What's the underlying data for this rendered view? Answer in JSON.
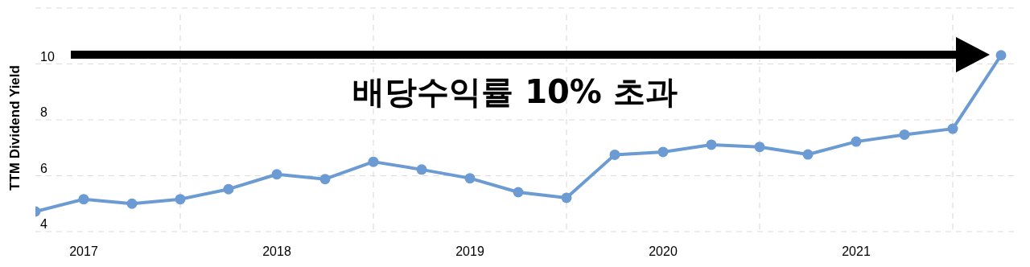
{
  "chart_data": {
    "type": "line",
    "ylabel": "TTM Dividend Yield",
    "x": [
      "2016-10",
      "2017-01",
      "2017-04",
      "2017-07",
      "2017-10",
      "2018-01",
      "2018-04",
      "2018-07",
      "2018-10",
      "2019-01",
      "2019-04",
      "2019-07",
      "2019-10",
      "2020-01",
      "2020-04",
      "2020-07",
      "2020-10",
      "2021-01",
      "2021-04",
      "2021-07",
      "2021-10"
    ],
    "series": [
      {
        "color": "#6b9bd2",
        "values": [
          4.72,
          5.16,
          5.0,
          5.16,
          5.52,
          6.05,
          5.88,
          6.5,
          6.22,
          5.91,
          5.41,
          5.21,
          6.75,
          6.85,
          7.11,
          7.03,
          6.76,
          7.22,
          7.47,
          7.68,
          10.31
        ]
      }
    ],
    "xlim": [
      "2016-10",
      "2021-11"
    ],
    "xticks": [
      {
        "value": "2017",
        "label": "2017"
      },
      {
        "value": "2017-07",
        "label": null
      },
      {
        "value": "2018",
        "label": "2018"
      },
      {
        "value": "2018-07",
        "label": null
      },
      {
        "value": "2019",
        "label": "2019"
      },
      {
        "value": "2019-07",
        "label": null
      },
      {
        "value": "2020",
        "label": "2020"
      },
      {
        "value": "2020-07",
        "label": null
      },
      {
        "value": "2021",
        "label": "2021"
      },
      {
        "value": "2021-07",
        "label": null
      }
    ],
    "ylim": [
      4,
      12
    ],
    "yticks": [
      4,
      6,
      8,
      10,
      {
        "value": 12,
        "label": null
      }
    ],
    "grid": true,
    "marker": "circle",
    "line_style": "solid",
    "annotations": [
      "배당수익률 10% 초과"
    ]
  }
}
